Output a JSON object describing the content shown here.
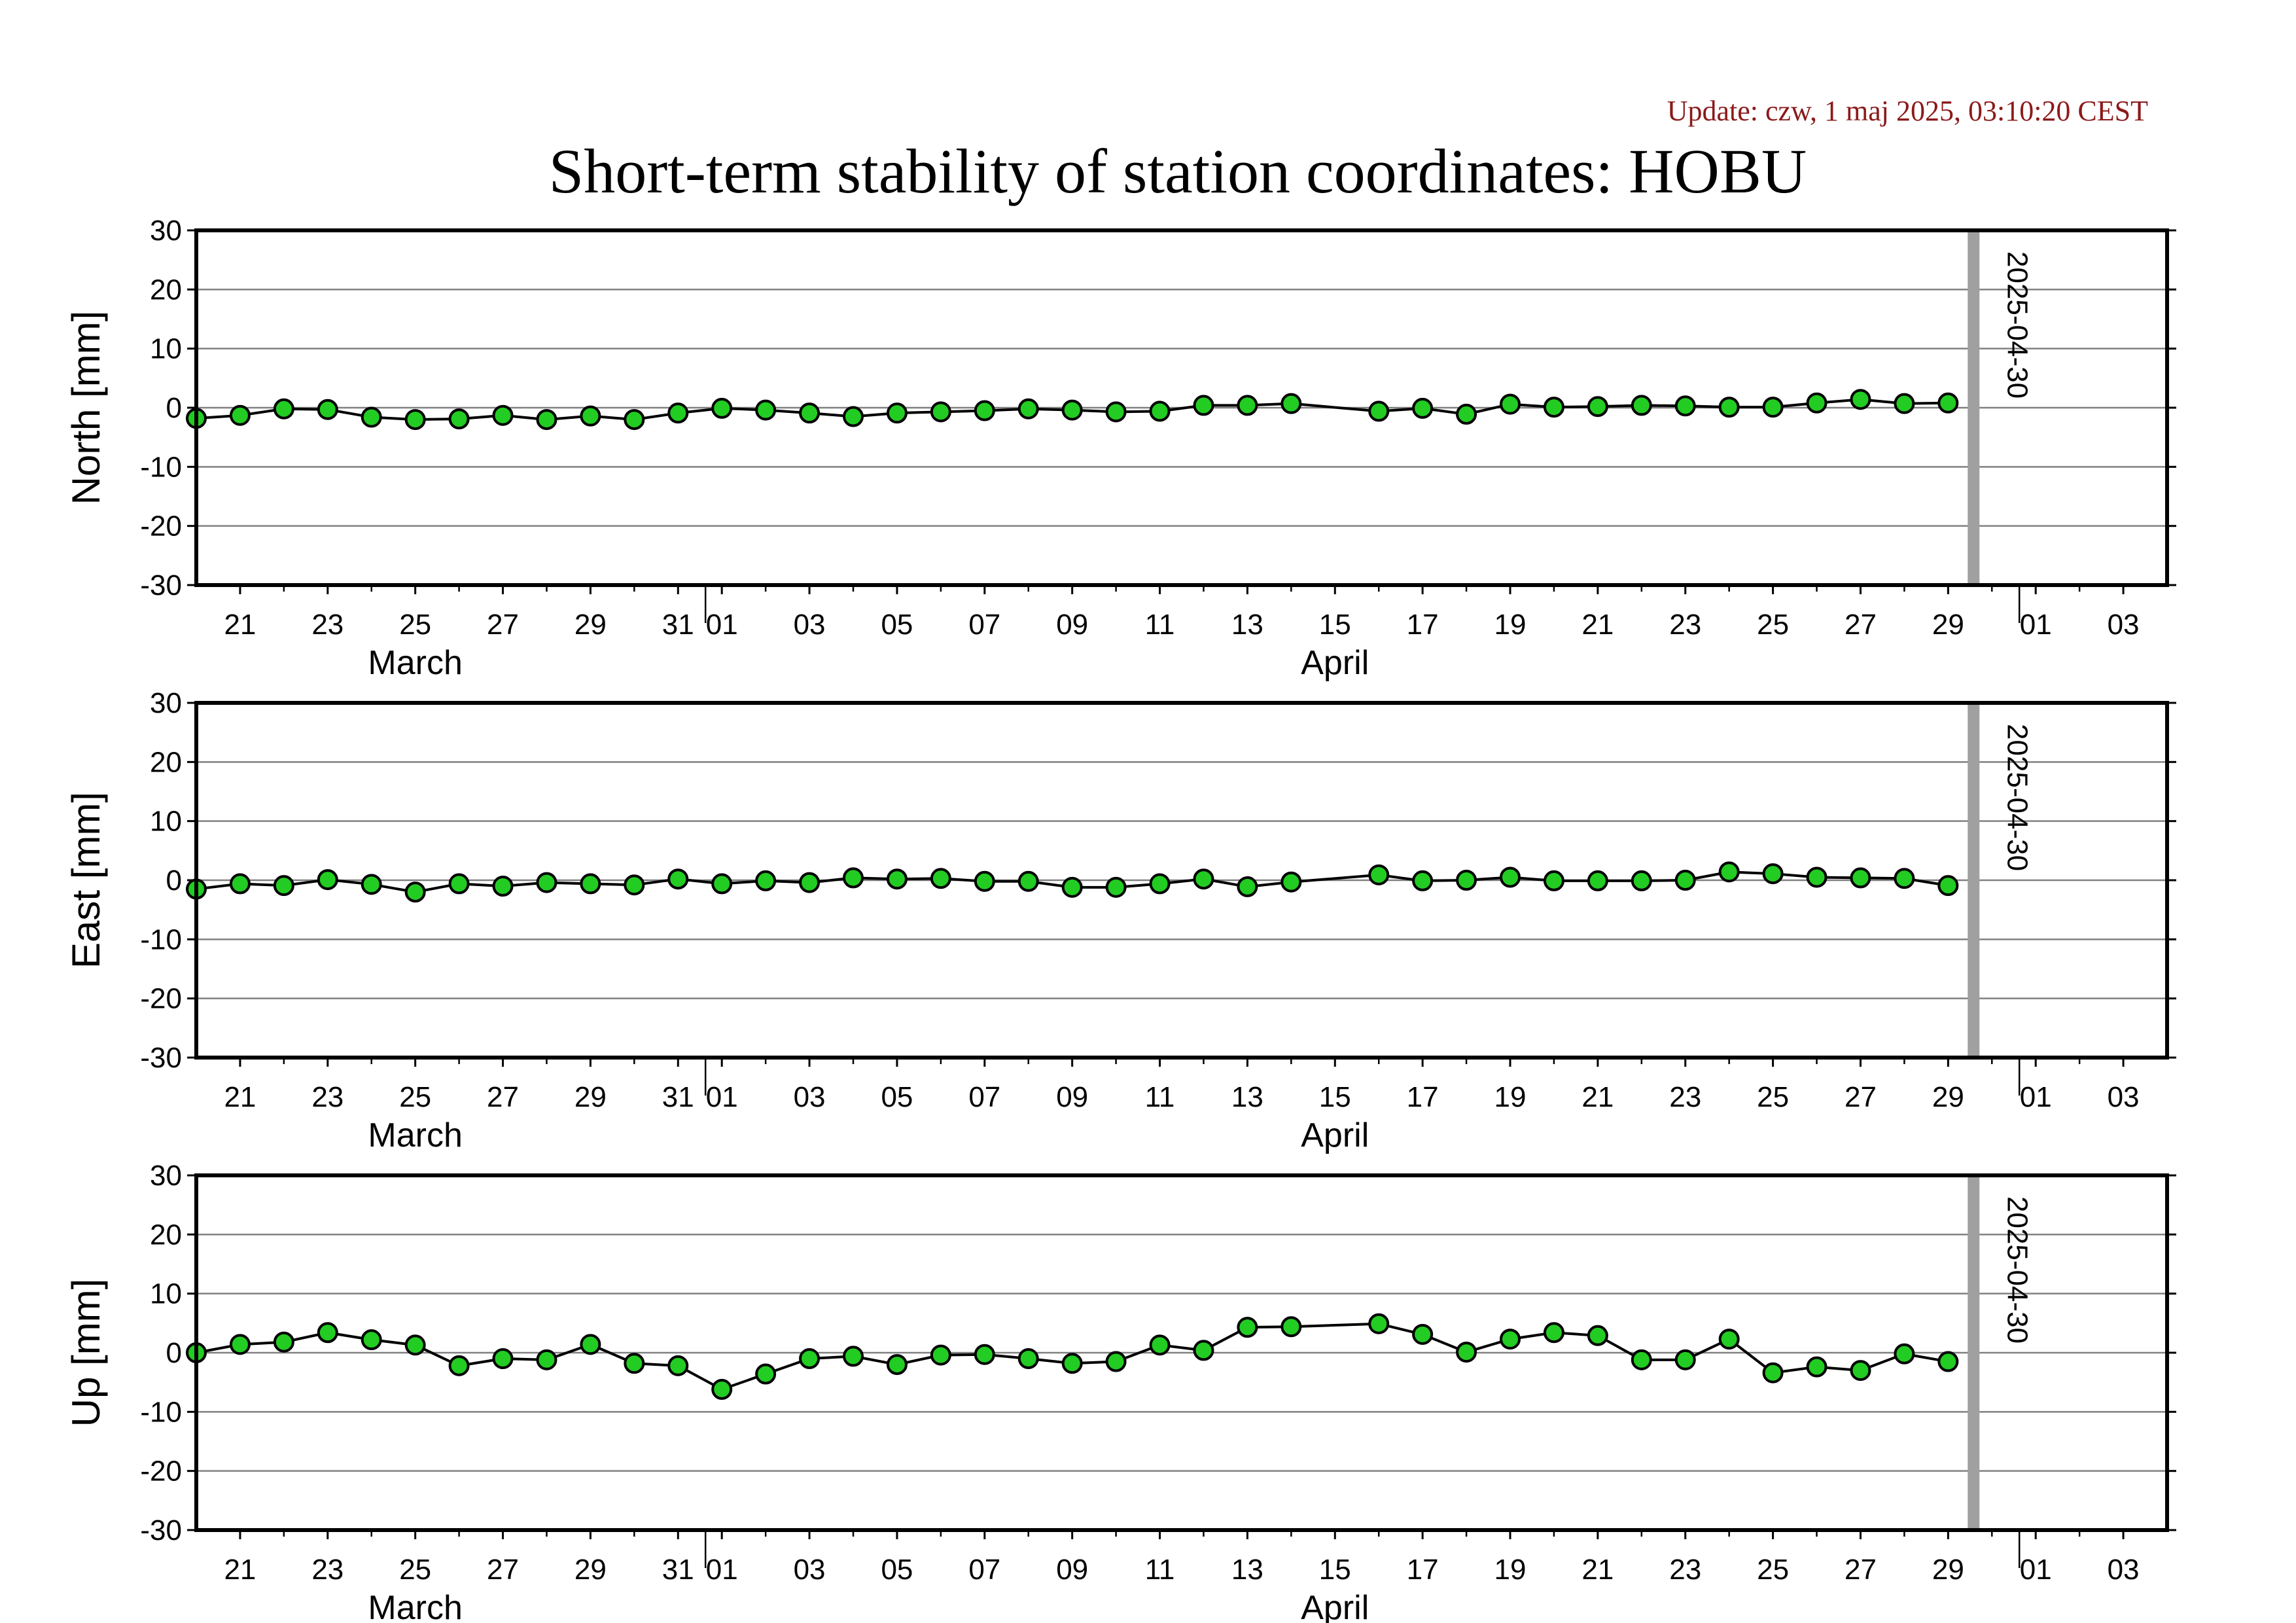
{
  "update_text": "Update: czw, 1 maj 2025, 03:10:20 CEST",
  "title": "Short-term stability of station coordinates: HOBU",
  "colors": {
    "point_fill": "#22cc22",
    "point_stroke": "#000000",
    "line": "#000000",
    "grid": "#808080",
    "marker": "#a0a0a0",
    "update_text": "#8b1a1a"
  },
  "chart_data": [
    {
      "type": "line",
      "ylabel": "North [mm]",
      "ylim": [
        -30,
        30
      ],
      "yticks": [
        30,
        20,
        10,
        0,
        -10,
        -20,
        -30
      ],
      "xlim": [
        "2025-03-20",
        "2025-05-04"
      ],
      "x_tick_labels": [
        "21",
        "23",
        "25",
        "27",
        "29",
        "31",
        "01",
        "03",
        "05",
        "07",
        "09",
        "11",
        "13",
        "15",
        "17",
        "19",
        "21",
        "23",
        "25",
        "27",
        "29",
        "01",
        "03"
      ],
      "month_labels": [
        "March",
        "April"
      ],
      "marker_label": "2025-04-30",
      "grid": true,
      "x": [
        "2025-03-20",
        "2025-03-21",
        "2025-03-22",
        "2025-03-23",
        "2025-03-24",
        "2025-03-25",
        "2025-03-26",
        "2025-03-27",
        "2025-03-28",
        "2025-03-29",
        "2025-03-30",
        "2025-03-31",
        "2025-04-01",
        "2025-04-02",
        "2025-04-03",
        "2025-04-04",
        "2025-04-05",
        "2025-04-06",
        "2025-04-07",
        "2025-04-08",
        "2025-04-09",
        "2025-04-10",
        "2025-04-11",
        "2025-04-12",
        "2025-04-13",
        "2025-04-14",
        "2025-04-16",
        "2025-04-17",
        "2025-04-18",
        "2025-04-19",
        "2025-04-20",
        "2025-04-21",
        "2025-04-22",
        "2025-04-23",
        "2025-04-24",
        "2025-04-25",
        "2025-04-26",
        "2025-04-27",
        "2025-04-28",
        "2025-04-29"
      ],
      "values": [
        -1.8,
        -1.3,
        -0.2,
        -0.3,
        -1.6,
        -2.0,
        -1.9,
        -1.3,
        -2.0,
        -1.4,
        -2.0,
        -0.9,
        -0.1,
        -0.4,
        -0.9,
        -1.5,
        -0.9,
        -0.7,
        -0.5,
        -0.2,
        -0.4,
        -0.7,
        -0.6,
        0.4,
        0.4,
        0.7,
        -0.6,
        -0.1,
        -1.1,
        0.6,
        0.1,
        0.2,
        0.4,
        0.3,
        0.1,
        0.1,
        0.8,
        1.4,
        0.7,
        0.8
      ]
    },
    {
      "type": "line",
      "ylabel": "East [mm]",
      "ylim": [
        -30,
        30
      ],
      "yticks": [
        30,
        20,
        10,
        0,
        -10,
        -20,
        -30
      ],
      "xlim": [
        "2025-03-20",
        "2025-05-04"
      ],
      "x_tick_labels": [
        "21",
        "23",
        "25",
        "27",
        "29",
        "31",
        "01",
        "03",
        "05",
        "07",
        "09",
        "11",
        "13",
        "15",
        "17",
        "19",
        "21",
        "23",
        "25",
        "27",
        "29",
        "01",
        "03"
      ],
      "month_labels": [
        "March",
        "April"
      ],
      "marker_label": "2025-04-30",
      "grid": true,
      "x": [
        "2025-03-20",
        "2025-03-21",
        "2025-03-22",
        "2025-03-23",
        "2025-03-24",
        "2025-03-25",
        "2025-03-26",
        "2025-03-27",
        "2025-03-28",
        "2025-03-29",
        "2025-03-30",
        "2025-03-31",
        "2025-04-01",
        "2025-04-02",
        "2025-04-03",
        "2025-04-04",
        "2025-04-05",
        "2025-04-06",
        "2025-04-07",
        "2025-04-08",
        "2025-04-09",
        "2025-04-10",
        "2025-04-11",
        "2025-04-12",
        "2025-04-13",
        "2025-04-14",
        "2025-04-16",
        "2025-04-17",
        "2025-04-18",
        "2025-04-19",
        "2025-04-20",
        "2025-04-21",
        "2025-04-22",
        "2025-04-23",
        "2025-04-24",
        "2025-04-25",
        "2025-04-26",
        "2025-04-27",
        "2025-04-28",
        "2025-04-29"
      ],
      "values": [
        -1.5,
        -0.6,
        -0.9,
        0.1,
        -0.7,
        -2.0,
        -0.6,
        -1.0,
        -0.4,
        -0.6,
        -0.8,
        0.2,
        -0.6,
        -0.1,
        -0.4,
        0.4,
        0.2,
        0.3,
        -0.2,
        -0.2,
        -1.2,
        -1.2,
        -0.6,
        0.2,
        -1.1,
        -0.3,
        0.9,
        -0.1,
        0.0,
        0.5,
        -0.1,
        -0.1,
        -0.1,
        0.0,
        1.4,
        1.1,
        0.5,
        0.4,
        0.3,
        -0.9
      ]
    },
    {
      "type": "line",
      "ylabel": "Up [mm]",
      "ylim": [
        -30,
        30
      ],
      "yticks": [
        30,
        20,
        10,
        0,
        -10,
        -20,
        -30
      ],
      "xlim": [
        "2025-03-20",
        "2025-05-04"
      ],
      "x_tick_labels": [
        "21",
        "23",
        "25",
        "27",
        "29",
        "31",
        "01",
        "03",
        "05",
        "07",
        "09",
        "11",
        "13",
        "15",
        "17",
        "19",
        "21",
        "23",
        "25",
        "27",
        "29",
        "01",
        "03"
      ],
      "month_labels": [
        "March",
        "April"
      ],
      "marker_label": "2025-04-30",
      "grid": true,
      "x": [
        "2025-03-20",
        "2025-03-21",
        "2025-03-22",
        "2025-03-23",
        "2025-03-24",
        "2025-03-25",
        "2025-03-26",
        "2025-03-27",
        "2025-03-28",
        "2025-03-29",
        "2025-03-30",
        "2025-03-31",
        "2025-04-01",
        "2025-04-02",
        "2025-04-03",
        "2025-04-04",
        "2025-04-05",
        "2025-04-06",
        "2025-04-07",
        "2025-04-08",
        "2025-04-09",
        "2025-04-10",
        "2025-04-11",
        "2025-04-12",
        "2025-04-13",
        "2025-04-14",
        "2025-04-16",
        "2025-04-17",
        "2025-04-18",
        "2025-04-19",
        "2025-04-20",
        "2025-04-21",
        "2025-04-22",
        "2025-04-23",
        "2025-04-24",
        "2025-04-25",
        "2025-04-26",
        "2025-04-27",
        "2025-04-28",
        "2025-04-29"
      ],
      "values": [
        0.0,
        1.4,
        1.8,
        3.4,
        2.2,
        1.3,
        -2.2,
        -1.0,
        -1.2,
        1.4,
        -1.8,
        -2.2,
        -6.2,
        -3.6,
        -1.0,
        -0.6,
        -2.0,
        -0.4,
        -0.3,
        -1.0,
        -1.8,
        -1.5,
        1.3,
        0.4,
        4.3,
        4.4,
        4.9,
        3.1,
        0.1,
        2.3,
        3.4,
        2.9,
        -1.2,
        -1.2,
        2.3,
        -3.4,
        -2.4,
        -3.0,
        -0.2,
        -1.5
      ]
    }
  ]
}
